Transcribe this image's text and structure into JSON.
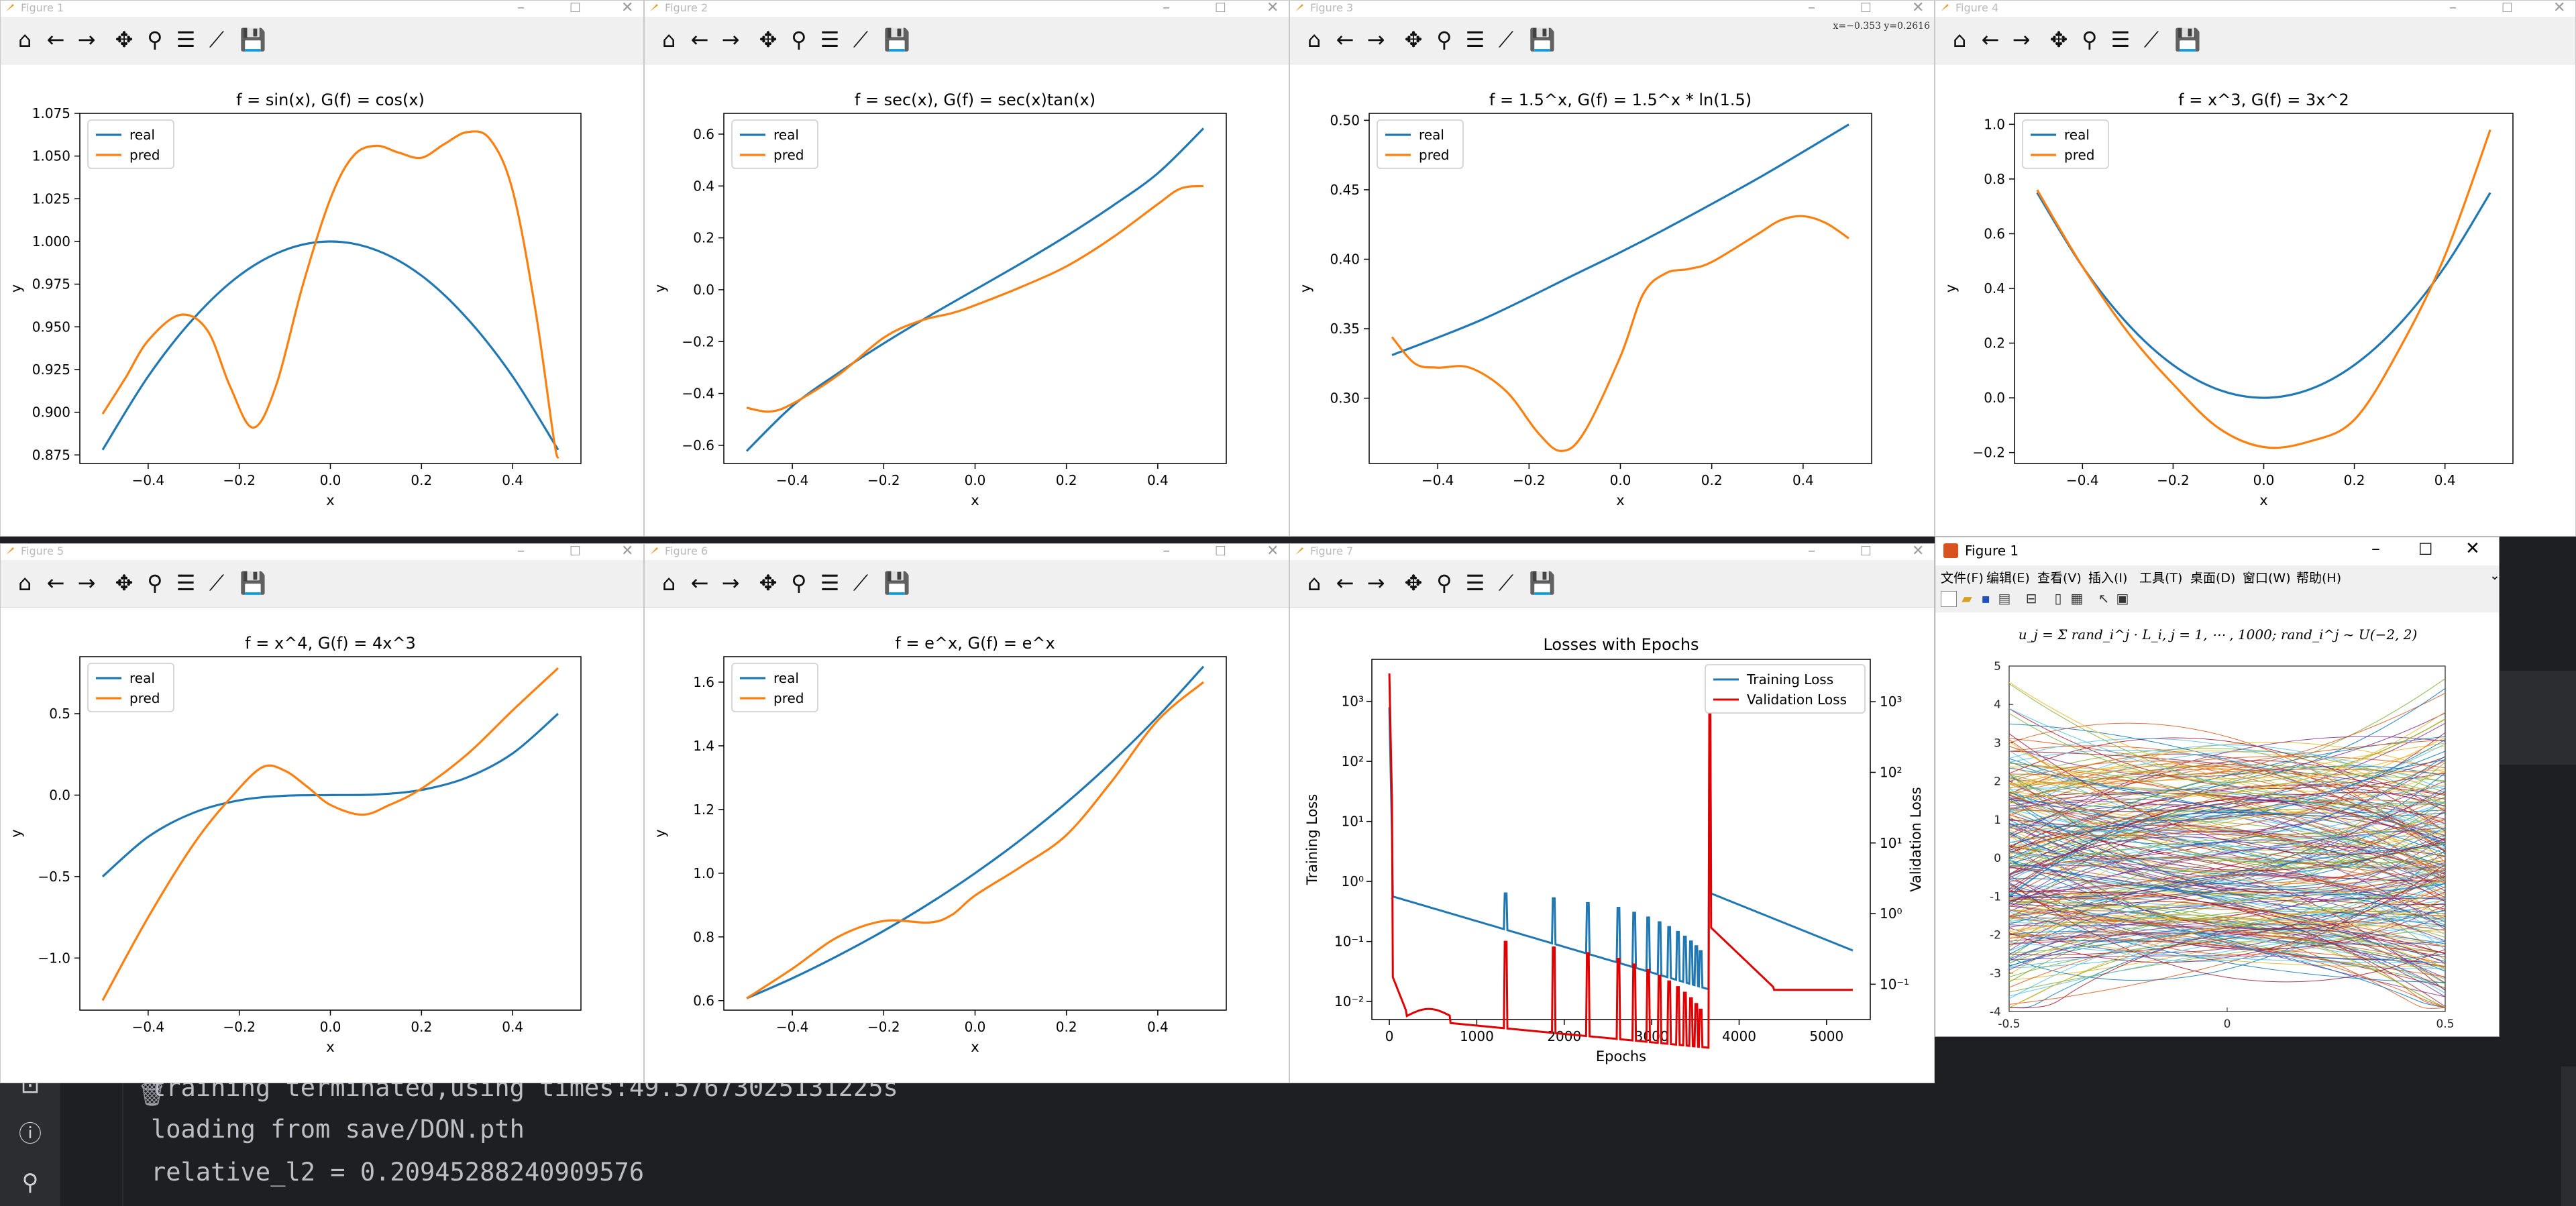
{
  "toolbar_icons": [
    "home-icon",
    "back-arrow-icon",
    "forward-arrow-icon",
    "pan-icon",
    "zoom-icon",
    "configure-subplots-icon",
    "edit-axes-icon",
    "save-icon"
  ],
  "figures": [
    {
      "title": "Figure 1",
      "plot_title": "f = sin(x), G(f) = cos(x)",
      "ylim": [
        0.87,
        1.075
      ],
      "yticks": [
        "0.875",
        "0.900",
        "0.925",
        "0.950",
        "0.975",
        "1.000",
        "1.025",
        "1.050",
        "1.075"
      ],
      "ytick_vals": [
        0.875,
        0.9,
        0.925,
        0.95,
        0.975,
        1.0,
        1.025,
        1.05,
        1.075
      ],
      "real": [
        [
          -0.5,
          0.878
        ],
        [
          -0.4,
          0.921
        ],
        [
          -0.3,
          0.955
        ],
        [
          -0.2,
          0.98
        ],
        [
          -0.1,
          0.995
        ],
        [
          0,
          1.0
        ],
        [
          0.1,
          0.995
        ],
        [
          0.2,
          0.98
        ],
        [
          0.3,
          0.955
        ],
        [
          0.4,
          0.921
        ],
        [
          0.5,
          0.878
        ]
      ],
      "pred": [
        [
          -0.5,
          0.899
        ],
        [
          -0.45,
          0.92
        ],
        [
          -0.4,
          0.942
        ],
        [
          -0.33,
          0.957
        ],
        [
          -0.27,
          0.948
        ],
        [
          -0.22,
          0.915
        ],
        [
          -0.17,
          0.891
        ],
        [
          -0.12,
          0.915
        ],
        [
          -0.06,
          0.975
        ],
        [
          0,
          1.025
        ],
        [
          0.05,
          1.05
        ],
        [
          0.1,
          1.056
        ],
        [
          0.15,
          1.052
        ],
        [
          0.2,
          1.049
        ],
        [
          0.25,
          1.057
        ],
        [
          0.3,
          1.064
        ],
        [
          0.35,
          1.06
        ],
        [
          0.4,
          1.03
        ],
        [
          0.45,
          0.96
        ],
        [
          0.49,
          0.885
        ],
        [
          0.5,
          0.873
        ]
      ]
    },
    {
      "title": "Figure 2",
      "plot_title": "f = sec(x), G(f) = sec(x)tan(x)",
      "ylim": [
        -0.67,
        0.68
      ],
      "yticks": [
        "−0.6",
        "−0.4",
        "−0.2",
        "0.0",
        "0.2",
        "0.4",
        "0.6"
      ],
      "ytick_vals": [
        -0.6,
        -0.4,
        -0.2,
        0,
        0.2,
        0.4,
        0.6
      ],
      "real": [
        [
          -0.5,
          -0.622
        ],
        [
          -0.4,
          -0.449
        ],
        [
          -0.3,
          -0.322
        ],
        [
          -0.2,
          -0.207
        ],
        [
          -0.1,
          -0.101
        ],
        [
          0,
          0
        ],
        [
          0.1,
          0.101
        ],
        [
          0.2,
          0.207
        ],
        [
          0.3,
          0.322
        ],
        [
          0.4,
          0.449
        ],
        [
          0.5,
          0.622
        ]
      ],
      "pred": [
        [
          -0.5,
          -0.455
        ],
        [
          -0.45,
          -0.47
        ],
        [
          -0.4,
          -0.44
        ],
        [
          -0.3,
          -0.33
        ],
        [
          -0.2,
          -0.185
        ],
        [
          -0.12,
          -0.12
        ],
        [
          -0.05,
          -0.09
        ],
        [
          0,
          -0.06
        ],
        [
          0.1,
          0.01
        ],
        [
          0.2,
          0.09
        ],
        [
          0.3,
          0.2
        ],
        [
          0.4,
          0.33
        ],
        [
          0.45,
          0.39
        ],
        [
          0.5,
          0.4
        ]
      ]
    },
    {
      "title": "Figure 3",
      "plot_title": "f = 1.5^x, G(f) = 1.5^x * ln(1.5)",
      "coords": "x=−0.353  y=0.2616",
      "ylim": [
        0.253,
        0.505
      ],
      "yticks": [
        "0.30",
        "0.35",
        "0.40",
        "0.45",
        "0.50"
      ],
      "ytick_vals": [
        0.3,
        0.35,
        0.4,
        0.45,
        0.5
      ],
      "real": [
        [
          -0.5,
          0.331
        ],
        [
          -0.3,
          0.357
        ],
        [
          -0.1,
          0.389
        ],
        [
          0,
          0.405
        ],
        [
          0.1,
          0.422
        ],
        [
          0.3,
          0.458
        ],
        [
          0.5,
          0.497
        ]
      ],
      "pred": [
        [
          -0.5,
          0.344
        ],
        [
          -0.45,
          0.325
        ],
        [
          -0.4,
          0.322
        ],
        [
          -0.33,
          0.322
        ],
        [
          -0.25,
          0.305
        ],
        [
          -0.18,
          0.275
        ],
        [
          -0.13,
          0.262
        ],
        [
          -0.08,
          0.275
        ],
        [
          0,
          0.33
        ],
        [
          0.05,
          0.375
        ],
        [
          0.1,
          0.39
        ],
        [
          0.15,
          0.393
        ],
        [
          0.2,
          0.398
        ],
        [
          0.3,
          0.418
        ],
        [
          0.35,
          0.428
        ],
        [
          0.4,
          0.431
        ],
        [
          0.45,
          0.426
        ],
        [
          0.5,
          0.415
        ]
      ]
    },
    {
      "title": "Figure 4",
      "plot_title": "f = x^3, G(f) = 3x^2",
      "ylim": [
        -0.24,
        1.04
      ],
      "yticks": [
        "−0.2",
        "0.0",
        "0.2",
        "0.4",
        "0.6",
        "0.8",
        "1.0"
      ],
      "ytick_vals": [
        -0.2,
        0,
        0.2,
        0.4,
        0.6,
        0.8,
        1.0
      ],
      "real": [
        [
          -0.5,
          0.75
        ],
        [
          -0.4,
          0.48
        ],
        [
          -0.3,
          0.27
        ],
        [
          -0.2,
          0.12
        ],
        [
          -0.1,
          0.03
        ],
        [
          0,
          0
        ],
        [
          0.1,
          0.03
        ],
        [
          0.2,
          0.12
        ],
        [
          0.3,
          0.27
        ],
        [
          0.4,
          0.48
        ],
        [
          0.5,
          0.75
        ]
      ],
      "pred": [
        [
          -0.5,
          0.76
        ],
        [
          -0.4,
          0.48
        ],
        [
          -0.3,
          0.24
        ],
        [
          -0.2,
          0.05
        ],
        [
          -0.1,
          -0.11
        ],
        [
          0,
          -0.18
        ],
        [
          0.1,
          -0.16
        ],
        [
          0.2,
          -0.08
        ],
        [
          0.3,
          0.18
        ],
        [
          0.4,
          0.52
        ],
        [
          0.5,
          0.98
        ]
      ]
    },
    {
      "title": "Figure 5",
      "plot_title": "f = x^4, G(f) = 4x^3",
      "ylim": [
        -1.32,
        0.85
      ],
      "yticks": [
        "−1.0",
        "−0.5",
        "0.0",
        "0.5"
      ],
      "ytick_vals": [
        -1.0,
        -0.5,
        0,
        0.5
      ],
      "real": [
        [
          -0.5,
          -0.5
        ],
        [
          -0.4,
          -0.256
        ],
        [
          -0.3,
          -0.108
        ],
        [
          -0.2,
          -0.032
        ],
        [
          -0.1,
          -0.004
        ],
        [
          0,
          0
        ],
        [
          0.1,
          0.004
        ],
        [
          0.2,
          0.032
        ],
        [
          0.3,
          0.108
        ],
        [
          0.4,
          0.256
        ],
        [
          0.5,
          0.5
        ]
      ],
      "pred": [
        [
          -0.5,
          -1.26
        ],
        [
          -0.4,
          -0.75
        ],
        [
          -0.3,
          -0.3
        ],
        [
          -0.22,
          -0.02
        ],
        [
          -0.15,
          0.17
        ],
        [
          -0.1,
          0.15
        ],
        [
          -0.05,
          0.05
        ],
        [
          0,
          -0.06
        ],
        [
          0.07,
          -0.12
        ],
        [
          0.13,
          -0.06
        ],
        [
          0.2,
          0.04
        ],
        [
          0.3,
          0.25
        ],
        [
          0.4,
          0.52
        ],
        [
          0.5,
          0.78
        ]
      ]
    },
    {
      "title": "Figure 6",
      "plot_title": "f = e^x, G(f) = e^x",
      "ylim": [
        0.57,
        1.68
      ],
      "yticks": [
        "0.6",
        "0.8",
        "1.0",
        "1.2",
        "1.4",
        "1.6"
      ],
      "ytick_vals": [
        0.6,
        0.8,
        1.0,
        1.2,
        1.4,
        1.6
      ],
      "real": [
        [
          -0.5,
          0.607
        ],
        [
          -0.4,
          0.67
        ],
        [
          -0.3,
          0.741
        ],
        [
          -0.2,
          0.819
        ],
        [
          -0.1,
          0.905
        ],
        [
          0,
          1.0
        ],
        [
          0.1,
          1.105
        ],
        [
          0.2,
          1.221
        ],
        [
          0.3,
          1.35
        ],
        [
          0.4,
          1.492
        ],
        [
          0.5,
          1.649
        ]
      ],
      "pred": [
        [
          -0.5,
          0.607
        ],
        [
          -0.4,
          0.7
        ],
        [
          -0.3,
          0.8
        ],
        [
          -0.2,
          0.85
        ],
        [
          -0.1,
          0.845
        ],
        [
          -0.05,
          0.87
        ],
        [
          0,
          0.93
        ],
        [
          0.1,
          1.02
        ],
        [
          0.2,
          1.12
        ],
        [
          0.3,
          1.29
        ],
        [
          0.4,
          1.48
        ],
        [
          0.5,
          1.6
        ]
      ]
    }
  ],
  "xticks": [
    "−0.4",
    "−0.2",
    "0.0",
    "0.2",
    "0.4"
  ],
  "xtick_vals": [
    -0.4,
    -0.2,
    0,
    0.2,
    0.4
  ],
  "xlabel": "x",
  "ylabel": "y",
  "legend": {
    "real": "real",
    "pred": "pred"
  },
  "colors": {
    "real": "#1f77b4",
    "pred": "#ff7f0e",
    "red": "#e00000"
  },
  "loss": {
    "window_title": "Figure 7",
    "plot_title": "Losses with Epochs",
    "xlabel": "Epochs",
    "ylabel_left": "Training Loss",
    "ylabel_right": "Validation Loss",
    "xticks": [
      "0",
      "1000",
      "2000",
      "3000",
      "4000",
      "5000"
    ],
    "xtick_vals": [
      0,
      1000,
      2000,
      3000,
      4000,
      5000
    ],
    "yticks_left": [
      "10⁻²",
      "10⁻¹",
      "10⁰",
      "10¹",
      "10²",
      "10³"
    ],
    "yticks_right": [
      "10⁻¹",
      "10⁰",
      "10¹",
      "10²",
      "10³"
    ],
    "legend": [
      "Training Loss",
      "Validation Loss"
    ],
    "xlim": [
      -200,
      5500
    ],
    "ylim_exp": [
      -2.3,
      3.7
    ]
  },
  "matlab": {
    "window_title": "Figure 1",
    "menus": [
      "文件(F)",
      "编辑(E)",
      "查看(V)",
      "插入(I)",
      "工具(T)",
      "桌面(D)",
      "窗口(W)",
      "帮助(H)"
    ],
    "formula": "u_j = Σ rand_i^j · L_i, j = 1, ⋯ , 1000; rand_i^j ~ U(−2, 2)",
    "yticks": [
      "5",
      "4",
      "3",
      "2",
      "1",
      "0",
      "-1",
      "-2",
      "-3",
      "-4"
    ],
    "xticks": [
      "-0.5",
      "0",
      "0.5"
    ]
  },
  "ide": {
    "lines": [
      "training terminated,using times:49.57673025131225​s",
      "loading from save/DON.pth",
      "relative_l2 = 0.20945288240909576"
    ]
  }
}
